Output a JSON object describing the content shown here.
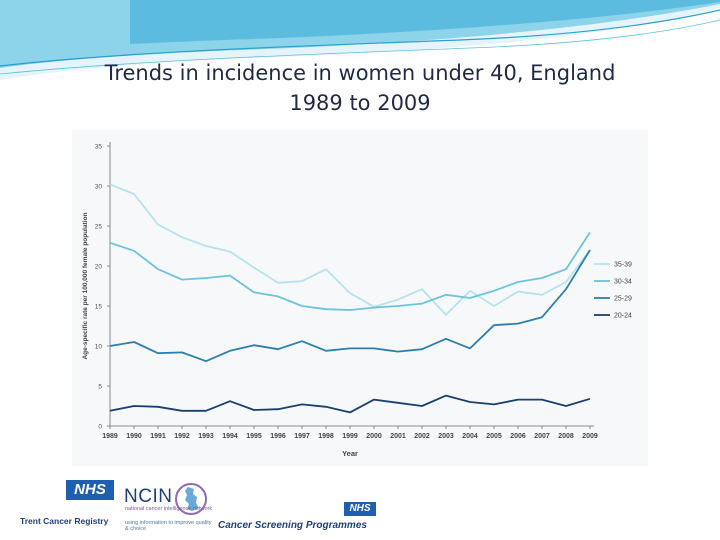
{
  "slide": {
    "title_line1": "Trends in incidence in women under 40, England",
    "title_line2": "1989 to 2009"
  },
  "colors": {
    "background": "#ffffff",
    "swoosh": "#4fb7dc",
    "nhs_blue": "#1f5fb0",
    "series_35_39": "#b4e3ee",
    "series_30_34": "#6cc3dd",
    "series_25_29": "#2b7fb0",
    "series_20_24": "#1b3f6e"
  },
  "logos": {
    "nhs_badge_1": "NHS",
    "trent_caption": "Trent Cancer Registry",
    "ncin_word": "NCIN",
    "ncin_tagline": "national cancer intelligence network",
    "ncin_subline": "using information to improve quality & choice",
    "nhs_badge_2": "NHS",
    "screening_caption": "Cancer Screening Programmes"
  },
  "chart_data": {
    "type": "line",
    "title": "",
    "xlabel": "Year",
    "ylabel": "Age-specific rate per 100,000 female population",
    "x": [
      "1989",
      "1990",
      "1991",
      "1992",
      "1993",
      "1994",
      "1995",
      "1996",
      "1997",
      "1998",
      "1999",
      "2000",
      "2001",
      "2002",
      "2003",
      "2004",
      "2005",
      "2006",
      "2007",
      "2008",
      "2009"
    ],
    "ylim": [
      0,
      35
    ],
    "yticks": [
      "0",
      "5",
      "10",
      "15",
      "20",
      "25",
      "30",
      "35"
    ],
    "grid": false,
    "legend_position": "right",
    "series": [
      {
        "name": "35-39",
        "color": "#b4e3ee",
        "values": [
          30.2,
          29.0,
          25.2,
          23.6,
          22.5,
          21.8,
          19.8,
          17.9,
          18.1,
          19.6,
          16.6,
          14.9,
          15.8,
          17.1,
          13.9,
          16.9,
          15.0,
          16.8,
          16.4,
          18.0,
          22.0
        ]
      },
      {
        "name": "30-34",
        "color": "#6cc3dd",
        "values": [
          22.9,
          21.9,
          19.6,
          18.3,
          18.5,
          18.8,
          16.7,
          16.2,
          15.0,
          14.6,
          14.5,
          14.8,
          15.0,
          15.3,
          16.4,
          16.0,
          16.9,
          18.0,
          18.5,
          19.6,
          24.2
        ]
      },
      {
        "name": "25-29",
        "color": "#2b7fb0",
        "values": [
          10.0,
          10.5,
          9.1,
          9.2,
          8.1,
          9.4,
          10.1,
          9.6,
          10.6,
          9.4,
          9.7,
          9.7,
          9.3,
          9.6,
          10.9,
          9.7,
          12.6,
          12.8,
          13.6,
          17.1,
          22.0
        ]
      },
      {
        "name": "20-24",
        "color": "#1b3f6e",
        "values": [
          1.9,
          2.5,
          2.4,
          1.9,
          1.9,
          3.1,
          2.0,
          2.1,
          2.7,
          2.4,
          1.7,
          3.3,
          2.9,
          2.5,
          3.8,
          3.0,
          2.7,
          3.3,
          3.3,
          2.5,
          3.4
        ]
      }
    ]
  }
}
